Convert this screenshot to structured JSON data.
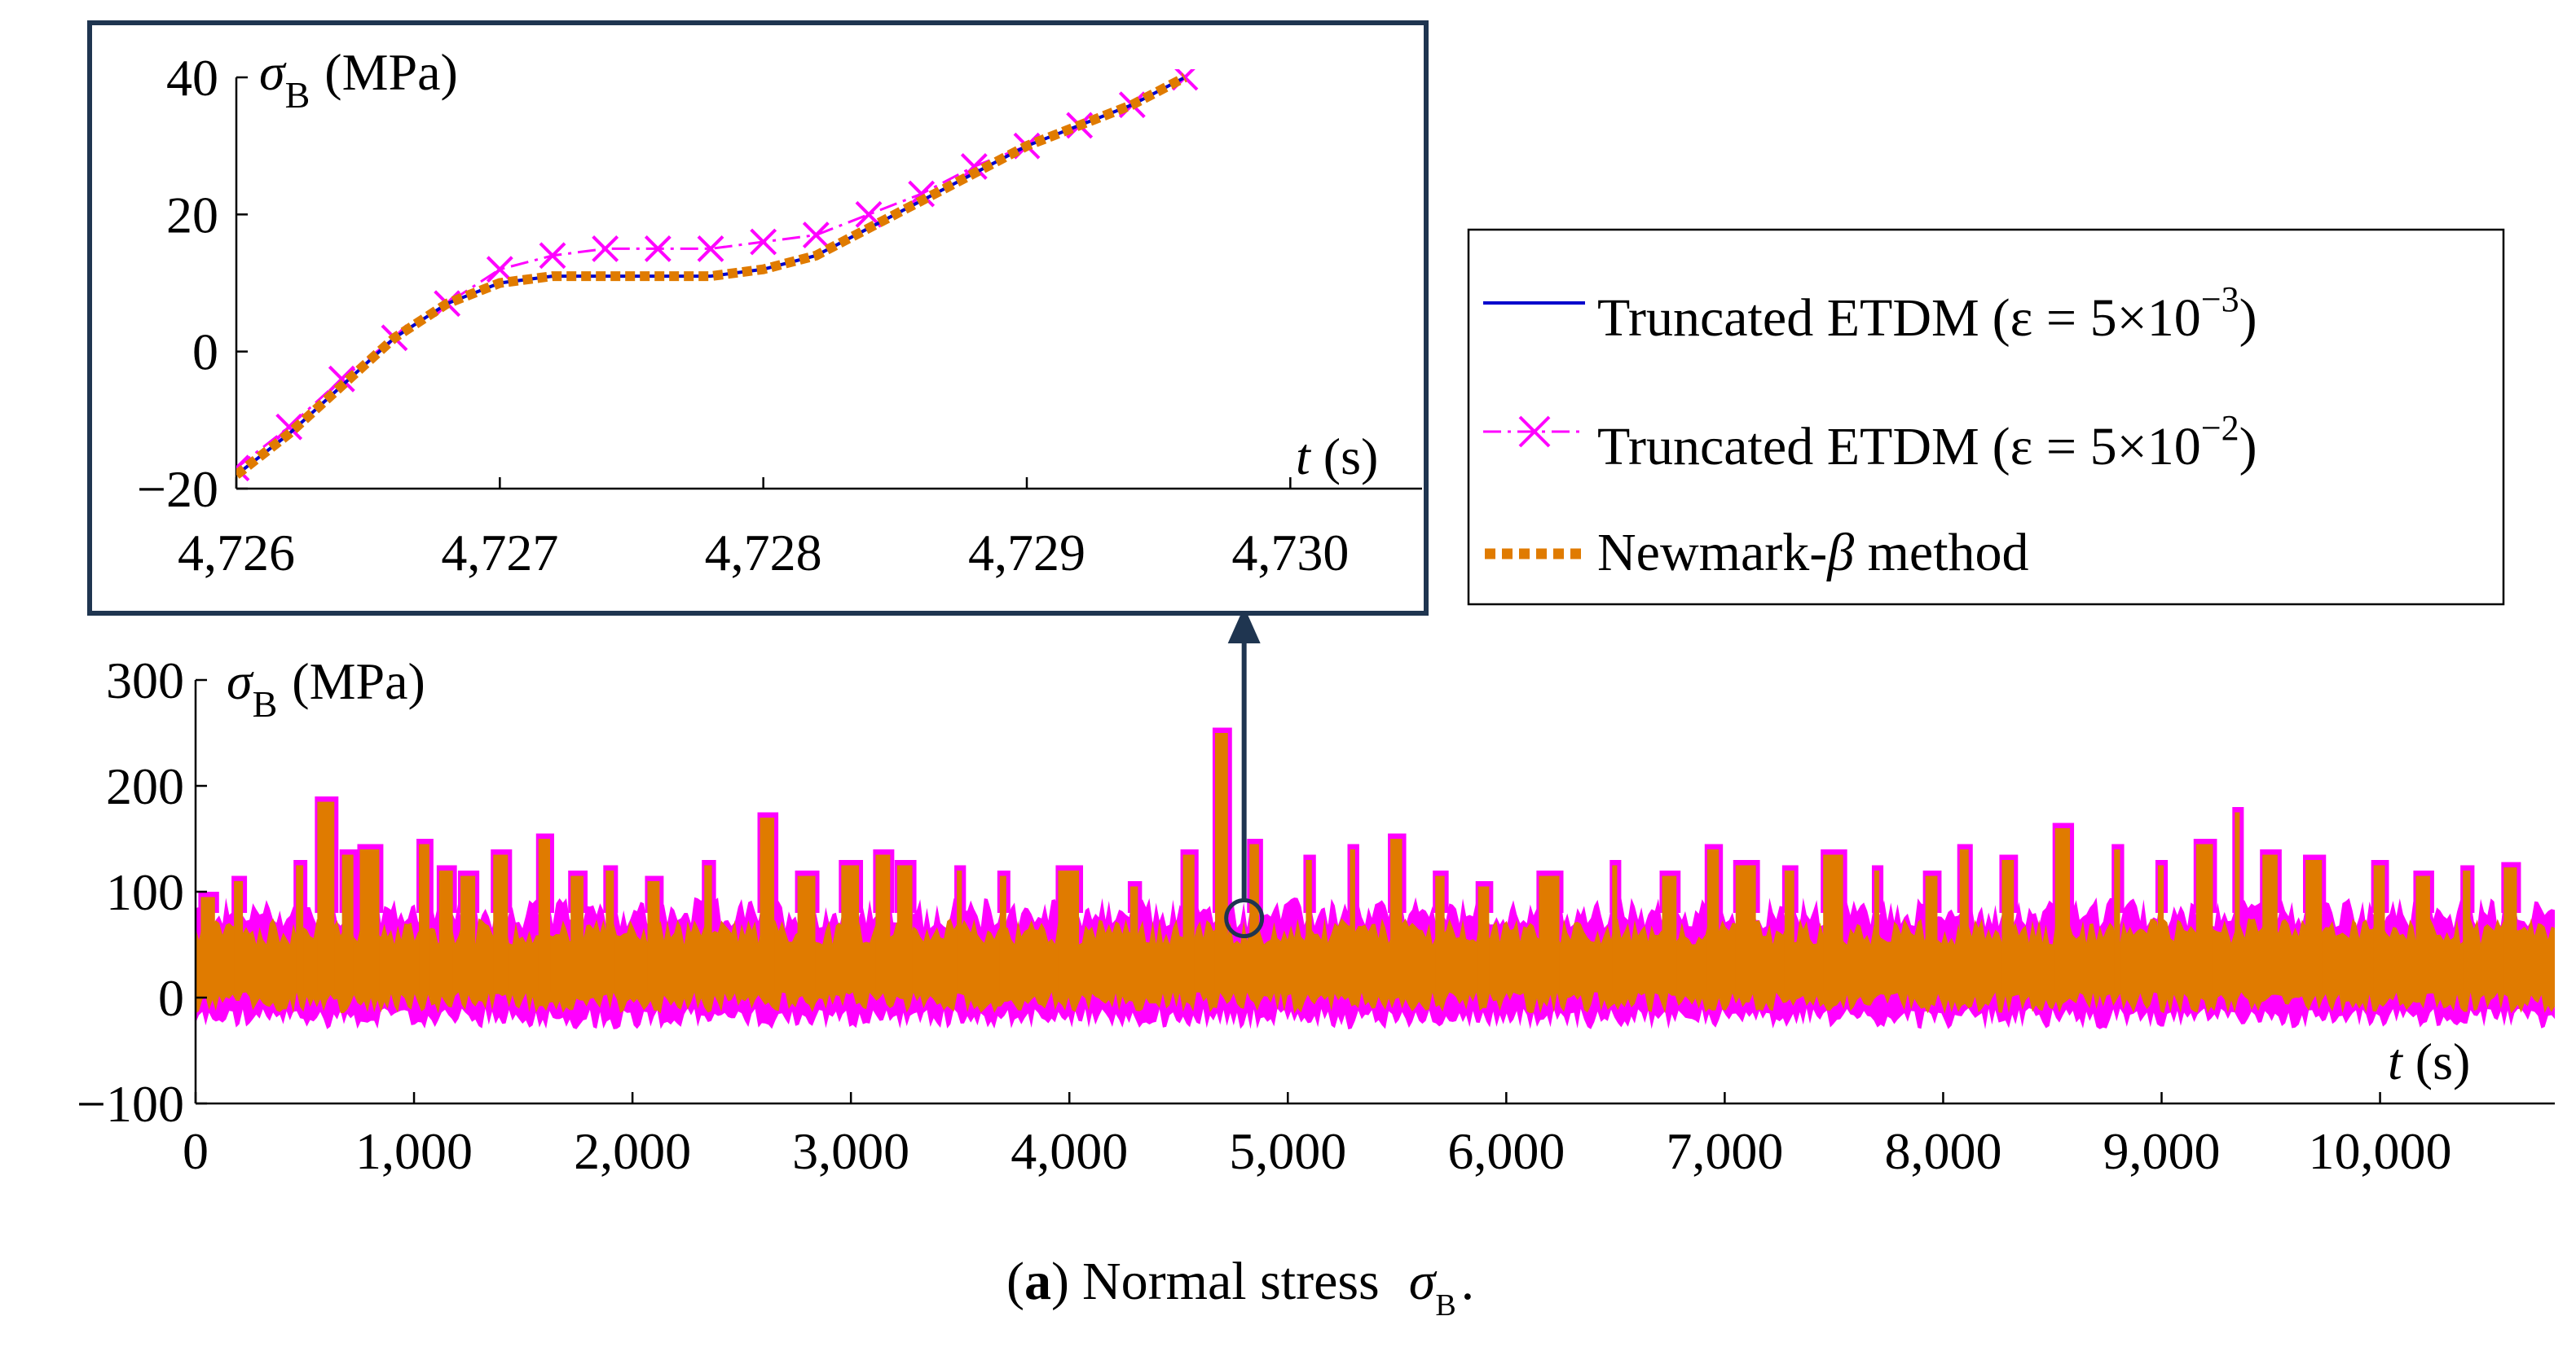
{
  "colors": {
    "etdm_fine": "#0000cc",
    "etdm_coarse": "#ff00ff",
    "newmark": "#e07b00",
    "inset_frame": "#1f3550",
    "arrow": "#1f3550",
    "axis": "#000000"
  },
  "caption": {
    "label": "a",
    "open_paren": "(",
    "close_paren": ")",
    "text": "Normal stress",
    "symbol": "σ",
    "subscript": "B",
    "end": "."
  },
  "legend": {
    "entries": [
      {
        "name": "Truncated ETDM",
        "eps_label": "(ε = 5×10",
        "exponent": "−3",
        "close": ")"
      },
      {
        "name": "Truncated ETDM",
        "eps_label": "(ε = 5×10",
        "exponent": "−2",
        "close": ")"
      },
      {
        "name": "Newmark-",
        "beta": "β",
        "suffix": " method"
      }
    ]
  },
  "chart_data": [
    {
      "id": "main",
      "type": "line",
      "title": "",
      "ylabel": {
        "symbol": "σ",
        "subscript": "B",
        "unit": "(MPa)"
      },
      "xlabel": {
        "symbol": "t",
        "unit": "(s)"
      },
      "xlim": [
        0,
        10800
      ],
      "ylim": [
        -100,
        300
      ],
      "xticks": [
        0,
        1000,
        2000,
        3000,
        4000,
        5000,
        6000,
        7000,
        8000,
        9000,
        10000
      ],
      "xtick_labels": [
        "0",
        "1,000",
        "2,000",
        "3,000",
        "4,000",
        "5,000",
        "6,000",
        "7,000",
        "8,000",
        "9,000",
        "10,000"
      ],
      "yticks": [
        -100,
        0,
        100,
        200,
        300
      ],
      "ytick_labels": [
        "−100",
        "0",
        "100",
        "200",
        "300"
      ],
      "envelope": {
        "band_lower": 5,
        "band_upper": 50,
        "baseline_low_min": -30,
        "baseline_low_max": -10,
        "baseline_high": 80,
        "spikes": [
          [
            60,
            100
          ],
          [
            200,
            115
          ],
          [
            480,
            130
          ],
          [
            600,
            190
          ],
          [
            700,
            140
          ],
          [
            800,
            145
          ],
          [
            1050,
            150
          ],
          [
            1150,
            125
          ],
          [
            1250,
            120
          ],
          [
            1400,
            140
          ],
          [
            1600,
            155
          ],
          [
            1750,
            120
          ],
          [
            1900,
            125
          ],
          [
            2100,
            115
          ],
          [
            2350,
            130
          ],
          [
            2620,
            175
          ],
          [
            2800,
            120
          ],
          [
            3000,
            130
          ],
          [
            3150,
            140
          ],
          [
            3250,
            130
          ],
          [
            3500,
            125
          ],
          [
            3700,
            120
          ],
          [
            4000,
            125
          ],
          [
            4300,
            110
          ],
          [
            4550,
            140
          ],
          [
            4700,
            255
          ],
          [
            4850,
            150
          ],
          [
            5100,
            135
          ],
          [
            5300,
            145
          ],
          [
            5500,
            155
          ],
          [
            5700,
            120
          ],
          [
            5900,
            110
          ],
          [
            6200,
            120
          ],
          [
            6500,
            130
          ],
          [
            6750,
            120
          ],
          [
            6950,
            145
          ],
          [
            7100,
            130
          ],
          [
            7300,
            125
          ],
          [
            7500,
            140
          ],
          [
            7700,
            125
          ],
          [
            7950,
            120
          ],
          [
            8100,
            145
          ],
          [
            8300,
            135
          ],
          [
            8550,
            165
          ],
          [
            8800,
            145
          ],
          [
            9000,
            130
          ],
          [
            9200,
            150
          ],
          [
            9350,
            180
          ],
          [
            9500,
            140
          ],
          [
            9700,
            135
          ],
          [
            10000,
            130
          ],
          [
            10200,
            120
          ],
          [
            10400,
            125
          ],
          [
            10600,
            128
          ]
        ]
      },
      "marker_circle": {
        "x": 4800,
        "y": 75
      }
    },
    {
      "id": "inset",
      "type": "line",
      "title": "",
      "ylabel": {
        "symbol": "σ",
        "subscript": "B",
        "unit": "(MPa)"
      },
      "xlabel": {
        "symbol": "t",
        "unit": "(s)"
      },
      "xlim": [
        4726,
        4730.5
      ],
      "ylim": [
        -20,
        40
      ],
      "xticks": [
        4726,
        4727,
        4728,
        4729,
        4730
      ],
      "xtick_labels": [
        "4,726",
        "4,727",
        "4,728",
        "4,729",
        "4,730"
      ],
      "yticks": [
        -20,
        0,
        20,
        40
      ],
      "ytick_labels": [
        "−20",
        "0",
        "20",
        "40"
      ],
      "series": [
        {
          "name": "Truncated ETDM (ε = 5×10−3)",
          "x": [
            4726.0,
            4726.2,
            4726.4,
            4726.6,
            4726.8,
            4727.0,
            4727.2,
            4727.4,
            4727.6,
            4727.8,
            4728.0,
            4728.2,
            4728.4,
            4728.6,
            4728.8,
            4729.0,
            4729.2,
            4729.4,
            4729.6
          ],
          "y": [
            -18,
            -12,
            -5,
            2,
            7,
            10,
            11,
            11,
            11,
            11,
            12,
            14,
            18,
            22,
            26,
            30,
            33,
            36,
            40
          ]
        },
        {
          "name": "Truncated ETDM (ε = 5×10−2)",
          "x": [
            4726.0,
            4726.2,
            4726.4,
            4726.6,
            4726.8,
            4727.0,
            4727.2,
            4727.4,
            4727.6,
            4727.8,
            4728.0,
            4728.2,
            4728.4,
            4728.6,
            4728.8,
            4729.0,
            4729.2,
            4729.4,
            4729.6
          ],
          "y": [
            -17,
            -11,
            -4,
            2,
            7,
            12,
            14,
            15,
            15,
            15,
            16,
            17,
            20,
            23,
            27,
            30,
            33,
            36,
            40
          ]
        },
        {
          "name": "Newmark-β method",
          "x": [
            4726.0,
            4726.2,
            4726.4,
            4726.6,
            4726.8,
            4727.0,
            4727.2,
            4727.4,
            4727.6,
            4727.8,
            4728.0,
            4728.2,
            4728.4,
            4728.6,
            4728.8,
            4729.0,
            4729.2,
            4729.4,
            4729.6
          ],
          "y": [
            -18,
            -12,
            -5,
            2,
            7,
            10,
            11,
            11,
            11,
            11,
            12,
            14,
            18,
            22,
            26,
            30,
            33,
            36,
            40
          ]
        }
      ]
    }
  ]
}
